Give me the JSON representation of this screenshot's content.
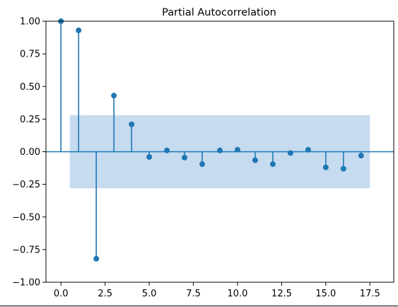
{
  "chart_data": {
    "type": "stem",
    "title": "Partial Autocorrelation",
    "xlabel": "",
    "ylabel": "",
    "x": [
      0,
      1,
      2,
      3,
      4,
      5,
      6,
      7,
      8,
      9,
      10,
      11,
      12,
      13,
      14,
      15,
      16,
      17
    ],
    "values": [
      1.0,
      0.93,
      -0.82,
      0.43,
      0.21,
      -0.04,
      0.01,
      -0.045,
      -0.095,
      0.01,
      0.015,
      -0.065,
      -0.095,
      -0.01,
      0.015,
      -0.12,
      -0.13,
      -0.03
    ],
    "confidence_band": {
      "x_start": 0.5,
      "x_end": 17.5,
      "lower": -0.28,
      "upper": 0.28
    },
    "xlim": [
      -0.85,
      18.85
    ],
    "ylim": [
      -1.0,
      1.0
    ],
    "xticks": [
      "0.0",
      "2.5",
      "5.0",
      "7.5",
      "10.0",
      "12.5",
      "15.0",
      "17.5"
    ],
    "xtick_values": [
      0,
      2.5,
      5,
      7.5,
      10,
      12.5,
      15,
      17.5
    ],
    "yticks": [
      "1.00",
      "0.75",
      "0.50",
      "0.25",
      "0.00",
      "−0.25",
      "−0.50",
      "−0.75",
      "−1.00"
    ],
    "ytick_values": [
      1.0,
      0.75,
      0.5,
      0.25,
      0.0,
      -0.25,
      -0.5,
      -0.75,
      -1.0
    ],
    "grid": false,
    "colors": {
      "stem": "#1f77b4",
      "band": "#c6dbef",
      "axis": "#000000"
    }
  }
}
